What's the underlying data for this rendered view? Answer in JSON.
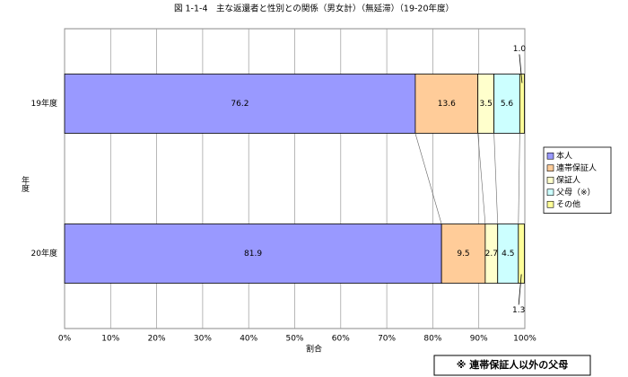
{
  "chart_data": {
    "type": "stacked_barh",
    "title": "図 1-1-4　主な返還者と性別との関係（男女計）（無延滞）（19-20年度）",
    "xlabel": "割合",
    "ylabel": "年度",
    "note": "※ 連帯保証人以外の父母",
    "categories": [
      "19年度",
      "20年度"
    ],
    "series": [
      {
        "name": "本人",
        "color": "#9999ff",
        "values": [
          76.2,
          81.9
        ],
        "value_labels": [
          "76.2",
          "81.9"
        ]
      },
      {
        "name": "連帯保証人",
        "color": "#ffcc99",
        "values": [
          13.6,
          9.5
        ],
        "value_labels": [
          "13.6",
          "9.5"
        ]
      },
      {
        "name": "保証人",
        "color": "#ffffcc",
        "values": [
          3.5,
          2.7
        ],
        "value_labels": [
          "3.5",
          "2.7"
        ]
      },
      {
        "name": "父母（※）",
        "color": "#ccffff",
        "values": [
          5.6,
          4.5
        ],
        "value_labels": [
          "5.6",
          "4.5"
        ]
      },
      {
        "name": "その他",
        "color": "#ffff99",
        "values": [
          1.0,
          1.3
        ],
        "value_labels": [
          "1.0",
          "1.3"
        ]
      }
    ],
    "xlim": [
      0,
      100
    ],
    "xticks": [
      {
        "value": 0,
        "label": "0%"
      },
      {
        "value": 10,
        "label": "10%"
      },
      {
        "value": 20,
        "label": "20%"
      },
      {
        "value": 30,
        "label": "30%"
      },
      {
        "value": 40,
        "label": "40%"
      },
      {
        "value": 50,
        "label": "50%"
      },
      {
        "value": 60,
        "label": "60%"
      },
      {
        "value": 70,
        "label": "70%"
      },
      {
        "value": 80,
        "label": "80%"
      },
      {
        "value": 90,
        "label": "90%"
      },
      {
        "value": 100,
        "label": "100%"
      }
    ],
    "grid": true,
    "legend": "right"
  }
}
